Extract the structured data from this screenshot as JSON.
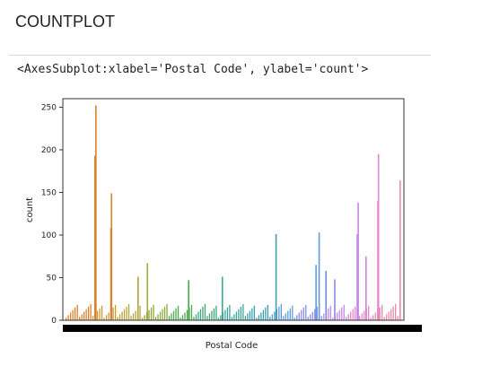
{
  "cell": {
    "heading": "COUNTPLOT",
    "output_repr": "<AxesSubplot:xlabel='Postal Code', ylabel='count'>"
  },
  "chart_data": {
    "type": "bar",
    "xlabel": "Postal Code",
    "ylabel": "count",
    "ylim": [
      0,
      260
    ],
    "yticks": [
      0,
      50,
      100,
      150,
      200,
      250
    ],
    "x_tick_labels_note": "",
    "notable_bars": [
      {
        "position": 0.095,
        "value": 252,
        "color": "#d9822b"
      },
      {
        "position": 0.092,
        "value": 193,
        "color": "#d9822b"
      },
      {
        "position": 0.145,
        "value": 149,
        "color": "#d9822b"
      },
      {
        "position": 0.143,
        "value": 108,
        "color": "#d9822b"
      },
      {
        "position": 0.23,
        "value": 51,
        "color": "#b5a33c"
      },
      {
        "position": 0.26,
        "value": 67,
        "color": "#a8a838"
      },
      {
        "position": 0.392,
        "value": 47,
        "color": "#4aa84a"
      },
      {
        "position": 0.5,
        "value": 51,
        "color": "#3aa68a"
      },
      {
        "position": 0.672,
        "value": 101,
        "color": "#3a9fb5"
      },
      {
        "position": 0.81,
        "value": 103,
        "color": "#5b9de0"
      },
      {
        "position": 0.8,
        "value": 65,
        "color": "#5b9de0"
      },
      {
        "position": 0.832,
        "value": 58,
        "color": "#6a8fe0"
      },
      {
        "position": 0.86,
        "value": 48,
        "color": "#8a8ae6"
      },
      {
        "position": 0.935,
        "value": 138,
        "color": "#c585e6"
      },
      {
        "position": 0.932,
        "value": 101,
        "color": "#c585e6"
      },
      {
        "position": 0.96,
        "value": 75,
        "color": "#d183e0"
      },
      {
        "position": 1.0,
        "value": 195,
        "color": "#e685c8"
      },
      {
        "position": 0.998,
        "value": 140,
        "color": "#e685c8"
      },
      {
        "position": 1.07,
        "value": 164,
        "color": "#ea8aa6"
      }
    ]
  }
}
